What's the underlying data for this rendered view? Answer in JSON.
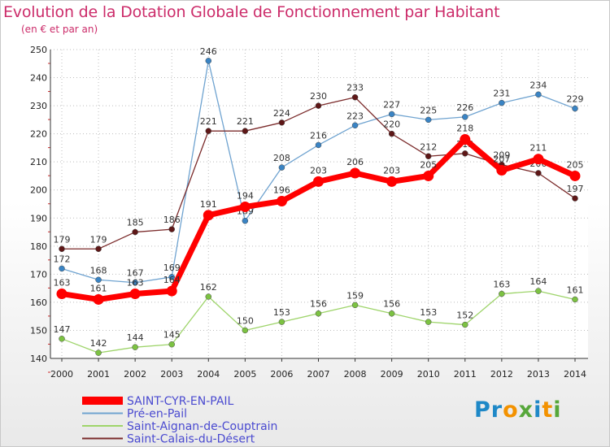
{
  "chart_data": {
    "type": "line",
    "title": "Evolution de la Dotation Globale de Fonctionnement par Habitant",
    "subtitle": "(en € et par an)",
    "xlabel": "",
    "ylabel": "",
    "ylim": [
      140,
      250
    ],
    "y_ticks": [
      140,
      150,
      160,
      170,
      180,
      190,
      200,
      210,
      220,
      230,
      240,
      250
    ],
    "categories": [
      "2000",
      "2001",
      "2002",
      "2003",
      "2004",
      "2005",
      "2006",
      "2007",
      "2008",
      "2009",
      "2010",
      "2011",
      "2012",
      "2013",
      "2014"
    ],
    "grid": true,
    "legend_position": "bottom-left",
    "series": [
      {
        "name": "Saint-Aignan-de-Couptrain",
        "color": "#9ed46a",
        "marker_color": "#7cc242",
        "values": [
          147,
          142,
          144,
          145,
          162,
          150,
          153,
          156,
          159,
          156,
          153,
          152,
          163,
          164,
          161
        ]
      },
      {
        "name": "Pré-en-Pail",
        "color": "#6fa3d0",
        "marker_color": "#3a84c4",
        "values": [
          172,
          168,
          167,
          169,
          246,
          189,
          208,
          216,
          223,
          227,
          225,
          226,
          231,
          234,
          229
        ]
      },
      {
        "name": "Saint-Calais-du-Désert",
        "color": "#7b2b2b",
        "marker_color": "#5e1717",
        "values": [
          179,
          179,
          185,
          186,
          221,
          221,
          224,
          230,
          233,
          220,
          212,
          213,
          209,
          206,
          197
        ]
      },
      {
        "name": "SAINT-CYR-EN-PAIL",
        "color": "#ff0000",
        "marker_color": "#ff0000",
        "values": [
          163,
          161,
          163,
          164,
          191,
          194,
          196,
          203,
          206,
          203,
          205,
          218,
          207,
          211,
          205
        ]
      }
    ],
    "legend_order": [
      "SAINT-CYR-EN-PAIL",
      "Pré-en-Pail",
      "Saint-Aignan-de-Couptrain",
      "Saint-Calais-du-Désert"
    ]
  },
  "logo": {
    "p1": "Pr",
    "p2": "o",
    "p3": "x",
    "p4": "i",
    "p5": "t",
    "p6": "i"
  }
}
